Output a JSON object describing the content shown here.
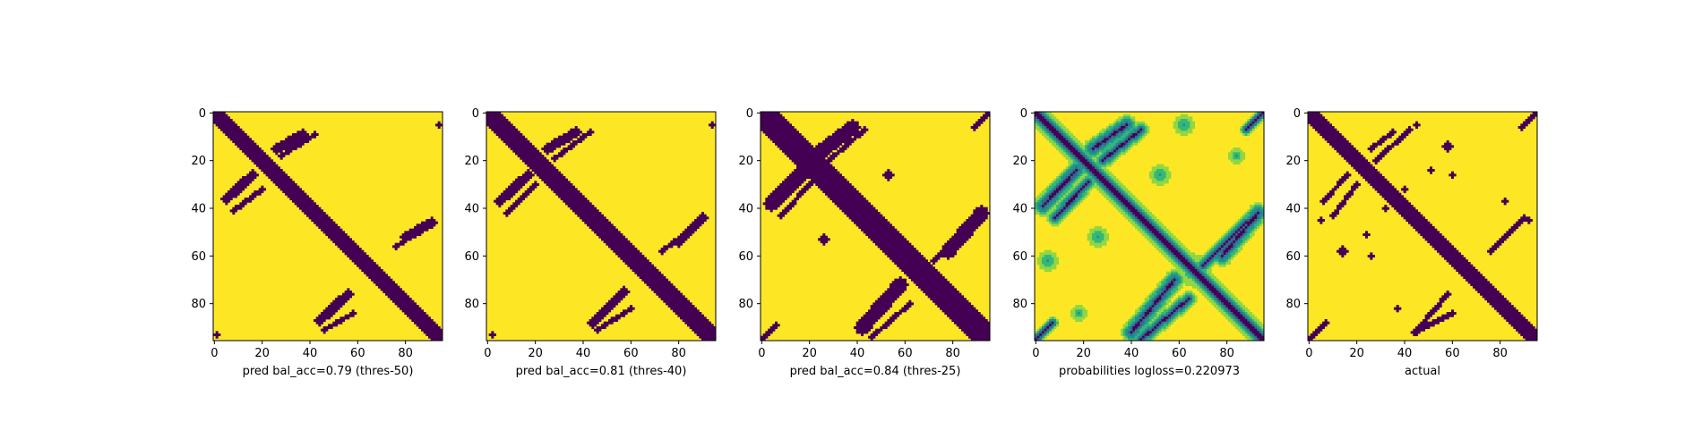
{
  "figure": {
    "background": "#ffffff"
  },
  "colors": {
    "viridis_low": "#440154",
    "viridis_mid_dark": "#31688e",
    "viridis_mid": "#21918c",
    "viridis_mid_light": "#35b779",
    "viridis_light": "#90d743",
    "viridis_high": "#fde725"
  },
  "chart_data": [
    {
      "type": "heatmap",
      "title": "",
      "xlabel": "pred bal_acc=0.79 (thres-50)",
      "ylabel": "",
      "xlim": [
        0,
        95
      ],
      "ylim": [
        95,
        0
      ],
      "xticks": [
        "0",
        "20",
        "40",
        "60",
        "80"
      ],
      "yticks": [
        "0",
        "20",
        "40",
        "60",
        "80"
      ],
      "colormap": "viridis",
      "binary": true,
      "grid": false,
      "features": [
        {
          "kind": "diagonal",
          "from": [
            0,
            0
          ],
          "to": [
            95,
            95
          ],
          "width": 3
        },
        {
          "kind": "band",
          "from": [
            26,
            15
          ],
          "to": [
            37,
            9
          ],
          "width": 2
        },
        {
          "kind": "band",
          "from": [
            28,
            18
          ],
          "to": [
            42,
            9
          ],
          "width": 1
        },
        {
          "kind": "band",
          "from": [
            5,
            36
          ],
          "to": [
            16,
            26
          ],
          "width": 2
        },
        {
          "kind": "band",
          "from": [
            8,
            41
          ],
          "to": [
            20,
            32
          ],
          "width": 1
        },
        {
          "kind": "band",
          "from": [
            80,
            52
          ],
          "to": [
            91,
            46
          ],
          "width": 2
        },
        {
          "kind": "band",
          "from": [
            76,
            56
          ],
          "to": [
            85,
            50
          ],
          "width": 1
        },
        {
          "kind": "band",
          "from": [
            44,
            87
          ],
          "to": [
            56,
            76
          ],
          "width": 2
        },
        {
          "kind": "band",
          "from": [
            46,
            91
          ],
          "to": [
            58,
            84
          ],
          "width": 1
        },
        {
          "kind": "blob",
          "center": [
            94,
            5
          ],
          "size": 1
        },
        {
          "kind": "blob",
          "center": [
            1,
            93
          ],
          "size": 1
        }
      ]
    },
    {
      "type": "heatmap",
      "title": "",
      "xlabel": "pred bal_acc=0.81 (thres-40)",
      "ylabel": "",
      "xlim": [
        0,
        95
      ],
      "ylim": [
        95,
        0
      ],
      "xticks": [
        "0",
        "20",
        "40",
        "60",
        "80"
      ],
      "yticks": [
        "0",
        "20",
        "40",
        "60",
        "80"
      ],
      "colormap": "viridis",
      "binary": true,
      "grid": false,
      "features": [
        {
          "kind": "diagonal",
          "from": [
            0,
            0
          ],
          "to": [
            95,
            95
          ],
          "width": 4
        },
        {
          "kind": "band",
          "from": [
            25,
            15
          ],
          "to": [
            37,
            8
          ],
          "width": 2
        },
        {
          "kind": "band",
          "from": [
            28,
            19
          ],
          "to": [
            43,
            8
          ],
          "width": 1
        },
        {
          "kind": "band",
          "from": [
            5,
            37
          ],
          "to": [
            17,
            26
          ],
          "width": 2
        },
        {
          "kind": "band",
          "from": [
            8,
            42
          ],
          "to": [
            20,
            30
          ],
          "width": 1
        },
        {
          "kind": "band",
          "from": [
            80,
            54
          ],
          "to": [
            90,
            44
          ],
          "width": 2
        },
        {
          "kind": "band",
          "from": [
            73,
            58
          ],
          "to": [
            86,
            48
          ],
          "width": 1
        },
        {
          "kind": "band",
          "from": [
            44,
            88
          ],
          "to": [
            57,
            75
          ],
          "width": 2
        },
        {
          "kind": "band",
          "from": [
            46,
            91
          ],
          "to": [
            60,
            82
          ],
          "width": 1
        },
        {
          "kind": "blob",
          "center": [
            94,
            5
          ],
          "size": 1
        },
        {
          "kind": "blob",
          "center": [
            2,
            93
          ],
          "size": 1
        }
      ]
    },
    {
      "type": "heatmap",
      "title": "",
      "xlabel": "pred bal_acc=0.84 (thres-25)",
      "ylabel": "",
      "xlim": [
        0,
        95
      ],
      "ylim": [
        95,
        0
      ],
      "xticks": [
        "0",
        "20",
        "40",
        "60",
        "80"
      ],
      "yticks": [
        "0",
        "20",
        "40",
        "60",
        "80"
      ],
      "colormap": "viridis",
      "binary": true,
      "grid": false,
      "features": [
        {
          "kind": "diagonal",
          "from": [
            0,
            0
          ],
          "to": [
            95,
            95
          ],
          "width": 5
        },
        {
          "kind": "band",
          "from": [
            25,
            16
          ],
          "to": [
            38,
            6
          ],
          "width": 3
        },
        {
          "kind": "band",
          "from": [
            28,
            20
          ],
          "to": [
            43,
            7
          ],
          "width": 1
        },
        {
          "kind": "band",
          "from": [
            4,
            38
          ],
          "to": [
            17,
            25
          ],
          "width": 3
        },
        {
          "kind": "band",
          "from": [
            8,
            43
          ],
          "to": [
            21,
            29
          ],
          "width": 1
        },
        {
          "kind": "band",
          "from": [
            78,
            58
          ],
          "to": [
            92,
            42
          ],
          "width": 3
        },
        {
          "kind": "band",
          "from": [
            72,
            62
          ],
          "to": [
            88,
            46
          ],
          "width": 1
        },
        {
          "kind": "band",
          "from": [
            42,
            90
          ],
          "to": [
            58,
            72
          ],
          "width": 3
        },
        {
          "kind": "band",
          "from": [
            46,
            94
          ],
          "to": [
            62,
            80
          ],
          "width": 1
        },
        {
          "kind": "band",
          "from": [
            89,
            6
          ],
          "to": [
            95,
            0
          ],
          "width": 1
        },
        {
          "kind": "band",
          "from": [
            0,
            95
          ],
          "to": [
            6,
            89
          ],
          "width": 1
        },
        {
          "kind": "blob",
          "center": [
            53,
            26
          ],
          "size": 2
        },
        {
          "kind": "blob",
          "center": [
            26,
            53
          ],
          "size": 2
        },
        {
          "kind": "blob",
          "center": [
            66,
            66
          ],
          "size": 5
        }
      ]
    },
    {
      "type": "heatmap",
      "title": "",
      "xlabel": "probabilities logloss=0.220973",
      "ylabel": "",
      "xlim": [
        0,
        95
      ],
      "ylim": [
        95,
        0
      ],
      "xticks": [
        "0",
        "20",
        "40",
        "60",
        "80"
      ],
      "yticks": [
        "0",
        "20",
        "40",
        "60",
        "80"
      ],
      "colormap": "viridis",
      "binary": false,
      "grid": false,
      "features": [
        {
          "kind": "diagonal",
          "from": [
            0,
            0
          ],
          "to": [
            95,
            95
          ],
          "width": 3
        },
        {
          "kind": "band",
          "from": [
            24,
            15
          ],
          "to": [
            38,
            5
          ],
          "width": 3
        },
        {
          "kind": "band",
          "from": [
            28,
            20
          ],
          "to": [
            44,
            7
          ],
          "width": 2
        },
        {
          "kind": "band",
          "from": [
            3,
            39
          ],
          "to": [
            17,
            24
          ],
          "width": 3
        },
        {
          "kind": "band",
          "from": [
            8,
            44
          ],
          "to": [
            22,
            29
          ],
          "width": 2
        },
        {
          "kind": "band",
          "from": [
            78,
            60
          ],
          "to": [
            93,
            42
          ],
          "width": 3
        },
        {
          "kind": "band",
          "from": [
            70,
            64
          ],
          "to": [
            88,
            46
          ],
          "width": 2
        },
        {
          "kind": "band",
          "from": [
            40,
            92
          ],
          "to": [
            58,
            70
          ],
          "width": 3
        },
        {
          "kind": "band",
          "from": [
            44,
            95
          ],
          "to": [
            64,
            78
          ],
          "width": 2
        },
        {
          "kind": "band",
          "from": [
            88,
            7
          ],
          "to": [
            95,
            0
          ],
          "width": 1
        },
        {
          "kind": "band",
          "from": [
            0,
            95
          ],
          "to": [
            7,
            88
          ],
          "width": 1
        },
        {
          "kind": "haze",
          "center": [
            52,
            26
          ],
          "size": 4
        },
        {
          "kind": "haze",
          "center": [
            26,
            52
          ],
          "size": 4
        },
        {
          "kind": "haze",
          "center": [
            66,
            66
          ],
          "size": 8
        },
        {
          "kind": "haze",
          "center": [
            62,
            5
          ],
          "size": 4
        },
        {
          "kind": "haze",
          "center": [
            5,
            62
          ],
          "size": 4
        },
        {
          "kind": "haze",
          "center": [
            84,
            18
          ],
          "size": 3
        },
        {
          "kind": "haze",
          "center": [
            18,
            84
          ],
          "size": 3
        }
      ]
    },
    {
      "type": "heatmap",
      "title": "",
      "xlabel": "actual",
      "ylabel": "",
      "xlim": [
        0,
        95
      ],
      "ylim": [
        95,
        0
      ],
      "xticks": [
        "0",
        "20",
        "40",
        "60",
        "80"
      ],
      "yticks": [
        "0",
        "20",
        "40",
        "60",
        "80"
      ],
      "colormap": "viridis",
      "binary": true,
      "grid": false,
      "features": [
        {
          "kind": "diagonal",
          "from": [
            0,
            0
          ],
          "to": [
            95,
            95
          ],
          "width": 3
        },
        {
          "kind": "band",
          "from": [
            26,
            15
          ],
          "to": [
            35,
            8
          ],
          "width": 1
        },
        {
          "kind": "band",
          "from": [
            28,
            20
          ],
          "to": [
            42,
            7
          ],
          "width": 1
        },
        {
          "kind": "band",
          "from": [
            6,
            37
          ],
          "to": [
            16,
            26
          ],
          "width": 1
        },
        {
          "kind": "band",
          "from": [
            10,
            43
          ],
          "to": [
            20,
            30
          ],
          "width": 1
        },
        {
          "kind": "band",
          "from": [
            76,
            58
          ],
          "to": [
            90,
            44
          ],
          "width": 1
        },
        {
          "kind": "band",
          "from": [
            46,
            90
          ],
          "to": [
            58,
            76
          ],
          "width": 1
        },
        {
          "kind": "band",
          "from": [
            44,
            92
          ],
          "to": [
            60,
            84
          ],
          "width": 1
        },
        {
          "kind": "band",
          "from": [
            89,
            6
          ],
          "to": [
            95,
            0
          ],
          "width": 1
        },
        {
          "kind": "band",
          "from": [
            0,
            95
          ],
          "to": [
            7,
            88
          ],
          "width": 1
        },
        {
          "kind": "blob",
          "center": [
            58,
            14
          ],
          "size": 2
        },
        {
          "kind": "blob",
          "center": [
            14,
            58
          ],
          "size": 2
        },
        {
          "kind": "blob",
          "center": [
            51,
            24
          ],
          "size": 1
        },
        {
          "kind": "blob",
          "center": [
            24,
            51
          ],
          "size": 1
        },
        {
          "kind": "blob",
          "center": [
            40,
            32
          ],
          "size": 1
        },
        {
          "kind": "blob",
          "center": [
            32,
            40
          ],
          "size": 1
        },
        {
          "kind": "blob",
          "center": [
            82,
            37
          ],
          "size": 1
        },
        {
          "kind": "blob",
          "center": [
            37,
            82
          ],
          "size": 1
        },
        {
          "kind": "blob",
          "center": [
            60,
            26
          ],
          "size": 1
        },
        {
          "kind": "blob",
          "center": [
            26,
            60
          ],
          "size": 1
        },
        {
          "kind": "blob",
          "center": [
            92,
            45
          ],
          "size": 1
        },
        {
          "kind": "blob",
          "center": [
            45,
            92
          ],
          "size": 1
        },
        {
          "kind": "blob",
          "center": [
            5,
            45
          ],
          "size": 1
        },
        {
          "kind": "blob",
          "center": [
            45,
            5
          ],
          "size": 1
        }
      ]
    }
  ]
}
